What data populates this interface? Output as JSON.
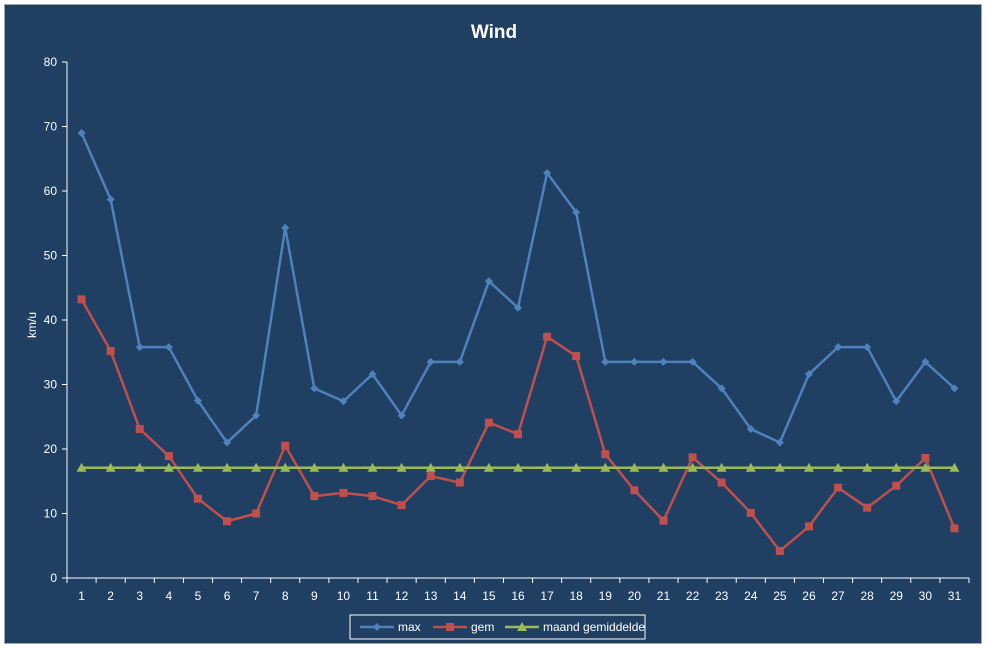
{
  "chart_data": {
    "type": "line",
    "title": "Wind",
    "xlabel": "",
    "ylabel": "km/u",
    "ylim": [
      0,
      80
    ],
    "yticks": [
      0,
      10,
      20,
      30,
      40,
      50,
      60,
      70,
      80
    ],
    "grid": false,
    "legend_position": "bottom",
    "categories": [
      "1",
      "2",
      "3",
      "4",
      "5",
      "6",
      "7",
      "8",
      "9",
      "10",
      "11",
      "12",
      "13",
      "14",
      "15",
      "16",
      "17",
      "18",
      "19",
      "20",
      "21",
      "22",
      "23",
      "24",
      "25",
      "26",
      "27",
      "28",
      "29",
      "30",
      "31"
    ],
    "series": [
      {
        "name": "max",
        "color": "#4f81bd",
        "marker": "diamond",
        "values": [
          69,
          58.7,
          35.8,
          35.8,
          27.5,
          21,
          25.2,
          54.3,
          29.4,
          27.4,
          31.6,
          25.2,
          33.5,
          33.5,
          46,
          41.9,
          62.8,
          56.7,
          33.5,
          33.5,
          33.5,
          33.5,
          29.4,
          23.1,
          21,
          31.6,
          35.8,
          35.8,
          27.4,
          33.5,
          29.4
        ]
      },
      {
        "name": "gem",
        "color": "#c0504d",
        "marker": "square",
        "values": [
          43.2,
          35.2,
          23.1,
          18.9,
          12.3,
          8.8,
          10,
          20.5,
          12.7,
          13.2,
          12.7,
          11.3,
          15.8,
          14.8,
          24.1,
          22.3,
          37.4,
          34.4,
          19.2,
          13.6,
          8.9,
          18.7,
          14.8,
          10.1,
          4.2,
          8,
          14,
          10.9,
          14.3,
          18.6,
          7.7
        ]
      },
      {
        "name": "maand gemiddelde",
        "color": "#9bbb59",
        "marker": "triangle",
        "values": [
          17.1,
          17.1,
          17.1,
          17.1,
          17.1,
          17.1,
          17.1,
          17.1,
          17.1,
          17.1,
          17.1,
          17.1,
          17.1,
          17.1,
          17.1,
          17.1,
          17.1,
          17.1,
          17.1,
          17.1,
          17.1,
          17.1,
          17.1,
          17.1,
          17.1,
          17.1,
          17.1,
          17.1,
          17.1,
          17.1,
          17.1
        ]
      }
    ]
  }
}
